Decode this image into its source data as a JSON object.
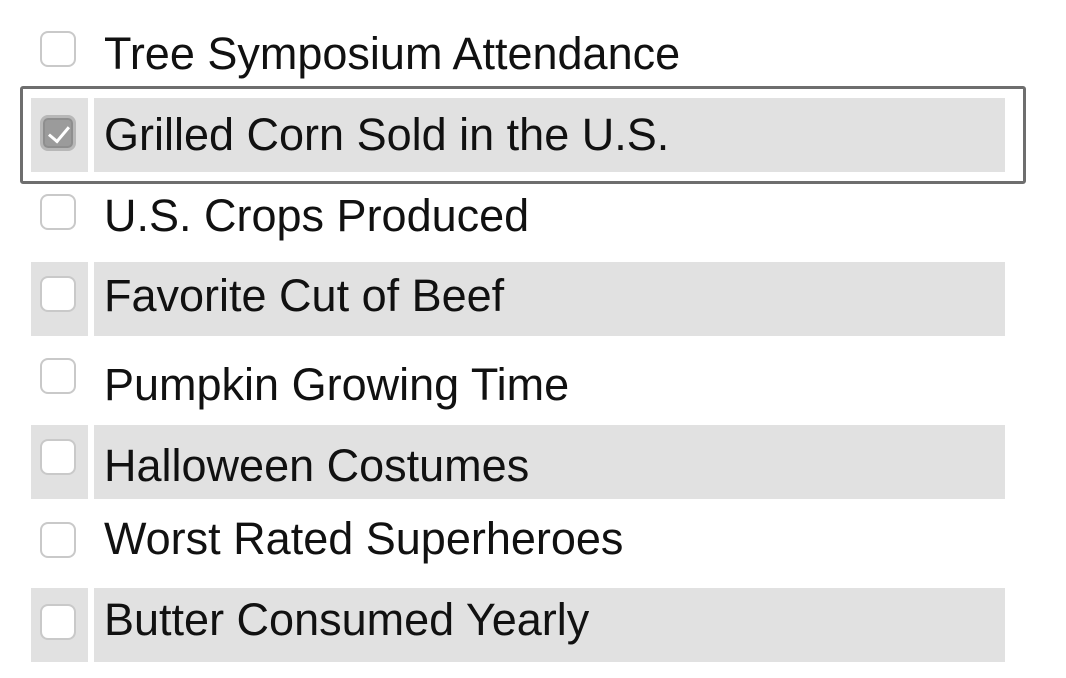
{
  "items": [
    {
      "label": "Tree Symposium Attendance",
      "checked": false
    },
    {
      "label": "Grilled Corn Sold in the U.S.",
      "checked": true
    },
    {
      "label": "U.S. Crops Produced",
      "checked": false
    },
    {
      "label": "Favorite Cut of Beef",
      "checked": false
    },
    {
      "label": "Pumpkin Growing Time",
      "checked": false
    },
    {
      "label": "Halloween Costumes",
      "checked": false
    },
    {
      "label": "Worst Rated Superheroes",
      "checked": false
    },
    {
      "label": "Butter Consumed Yearly",
      "checked": false
    }
  ],
  "colors": {
    "row_shade": "#e1e1e1",
    "focus_border": "#6e6e6e",
    "checked_fill": "#9b9b9b"
  },
  "icons": {
    "unchecked": "checkbox-unchecked-icon",
    "checked": "checkbox-checked-icon"
  }
}
